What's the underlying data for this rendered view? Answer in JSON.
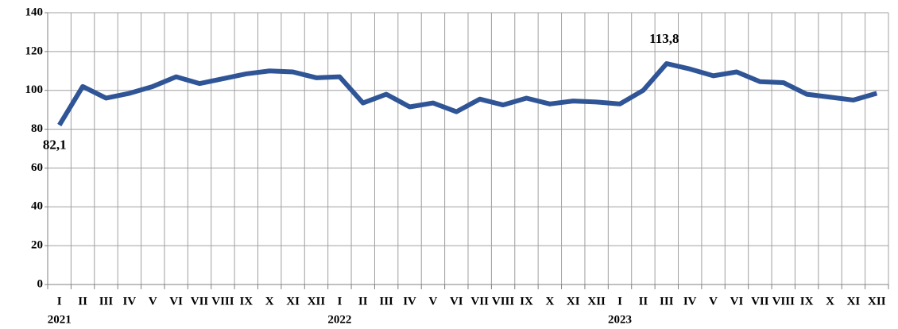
{
  "chart_data": {
    "type": "line",
    "categories": [
      "I",
      "II",
      "III",
      "IV",
      "V",
      "VI",
      "VII",
      "VIII",
      "IX",
      "X",
      "XI",
      "XII",
      "I",
      "II",
      "III",
      "IV",
      "V",
      "VI",
      "VII",
      "VIII",
      "IX",
      "X",
      "XI",
      "XII",
      "I",
      "II",
      "III",
      "IV",
      "V",
      "VI",
      "VII",
      "VIII",
      "IX",
      "X",
      "XI",
      "XII"
    ],
    "years": [
      "2021",
      "2022",
      "2023"
    ],
    "series": [
      {
        "color": "#2f5597",
        "values": [
          82.1,
          102,
          96,
          98.5,
          102,
          107,
          103.5,
          106,
          108.5,
          110,
          109.5,
          106.5,
          107,
          93.5,
          98,
          91.5,
          93.5,
          89,
          95.5,
          92.5,
          96,
          93,
          94.5,
          94,
          93,
          100,
          113.8,
          111,
          107.5,
          109.5,
          104.5,
          104,
          98,
          96.5,
          95,
          98.5
        ],
        "value_labels": [
          "82,1",
          null,
          null,
          null,
          null,
          null,
          null,
          null,
          null,
          null,
          null,
          null,
          null,
          null,
          null,
          null,
          null,
          null,
          null,
          null,
          null,
          null,
          null,
          null,
          null,
          null,
          "113,8",
          null,
          null,
          null,
          null,
          null,
          null,
          null,
          null,
          null
        ]
      }
    ],
    "ylim": [
      0,
      140
    ],
    "yticks": [
      0,
      20,
      40,
      60,
      80,
      100,
      120,
      140
    ],
    "grid": true
  }
}
